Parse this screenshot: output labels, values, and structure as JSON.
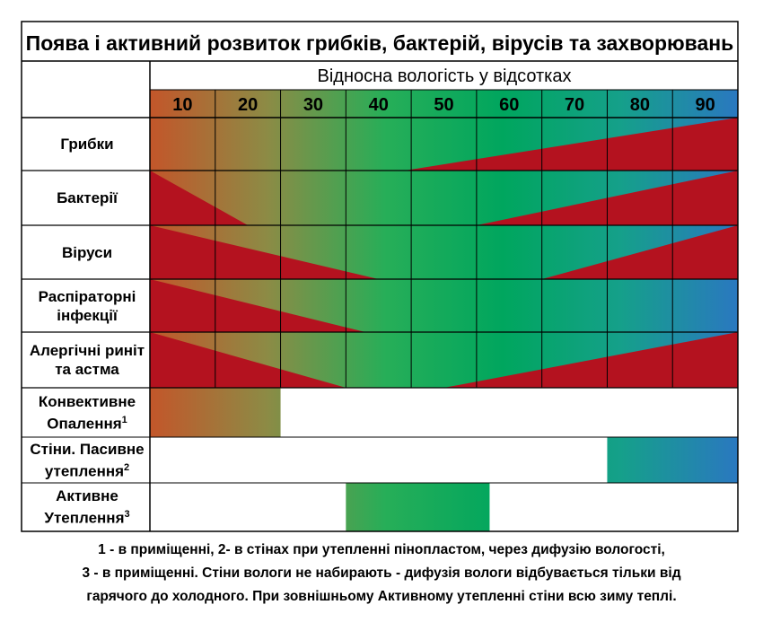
{
  "title": "Поява і активний розвиток грибків, бактерій, вірусів та захворювань",
  "axis_title": "Відносна вологість у відсотках",
  "colors": {
    "gradient": [
      "#c3562a",
      "#8c8b45",
      "#27ae58",
      "#00a65e",
      "#15a08a",
      "#2a78c0"
    ],
    "triangle": "#b4121f",
    "grid": "#000000"
  },
  "chart_data": {
    "type": "table",
    "x_ticks": [
      10,
      20,
      30,
      40,
      50,
      60,
      70,
      80,
      90
    ],
    "rows": [
      {
        "label": "Грибки",
        "sup": "",
        "triangles": [
          {
            "direction": "rising",
            "start": 44,
            "end": 95
          }
        ]
      },
      {
        "label": "Бактерії",
        "sup": "",
        "triangles": [
          {
            "direction": "falling",
            "start": 5,
            "end": 20
          },
          {
            "direction": "rising",
            "start": 55,
            "end": 95
          }
        ]
      },
      {
        "label": "Віруси",
        "sup": "",
        "triangles": [
          {
            "direction": "falling",
            "start": 5,
            "end": 40
          },
          {
            "direction": "rising",
            "start": 65,
            "end": 95
          }
        ]
      },
      {
        "label": "Распіраторні інфекції",
        "sup": "",
        "triangles": [
          {
            "direction": "falling",
            "start": 5,
            "end": 38
          }
        ]
      },
      {
        "label": "Алергічні риніт та астма",
        "sup": "",
        "triangles": [
          {
            "direction": "falling",
            "start": 5,
            "end": 35
          },
          {
            "direction": "rising",
            "start": 50,
            "end": 95
          }
        ]
      }
    ],
    "heating_rows": [
      {
        "label": "Конвективне Опалення",
        "sup": "1",
        "band": [
          5,
          25
        ]
      },
      {
        "label": "Стіни. Пасивне утеплення",
        "sup": "2",
        "band": [
          75,
          95
        ]
      },
      {
        "label": "Активне Утеплення",
        "sup": "3",
        "band": [
          35,
          57
        ]
      }
    ]
  },
  "footnote": [
    "1 - в приміщенні, 2- в стінах при утепленні пінопластом, через дифузію вологості,",
    "3 - в приміщенні. Стіни вологи не набирають -  дифузія вологи відбувається тільки від",
    "гарячого до холодного. При зовнішньому Активному утепленні стіни всю зиму теплі."
  ]
}
